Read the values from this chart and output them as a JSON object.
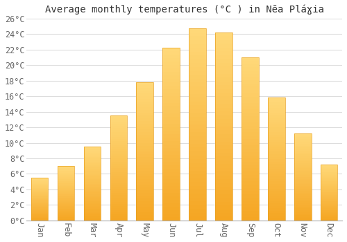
{
  "title": "Average monthly temperatures (°C ) in Nēa Pláɣia",
  "months": [
    "Jan",
    "Feb",
    "Mar",
    "Apr",
    "May",
    "Jun",
    "Jul",
    "Aug",
    "Sep",
    "Oct",
    "Nov",
    "Dec"
  ],
  "values": [
    5.5,
    7.0,
    9.5,
    13.5,
    17.8,
    22.2,
    24.7,
    24.2,
    21.0,
    15.8,
    11.2,
    7.2
  ],
  "bar_color_bottom": "#F5A623",
  "bar_color_top": "#FFD97A",
  "bar_edge_color": "#E8A020",
  "ylim": [
    0,
    26
  ],
  "yticks": [
    0,
    2,
    4,
    6,
    8,
    10,
    12,
    14,
    16,
    18,
    20,
    22,
    24,
    26
  ],
  "background_color": "#ffffff",
  "grid_color": "#dddddd",
  "title_fontsize": 10,
  "tick_fontsize": 8.5,
  "tick_color": "#666666"
}
